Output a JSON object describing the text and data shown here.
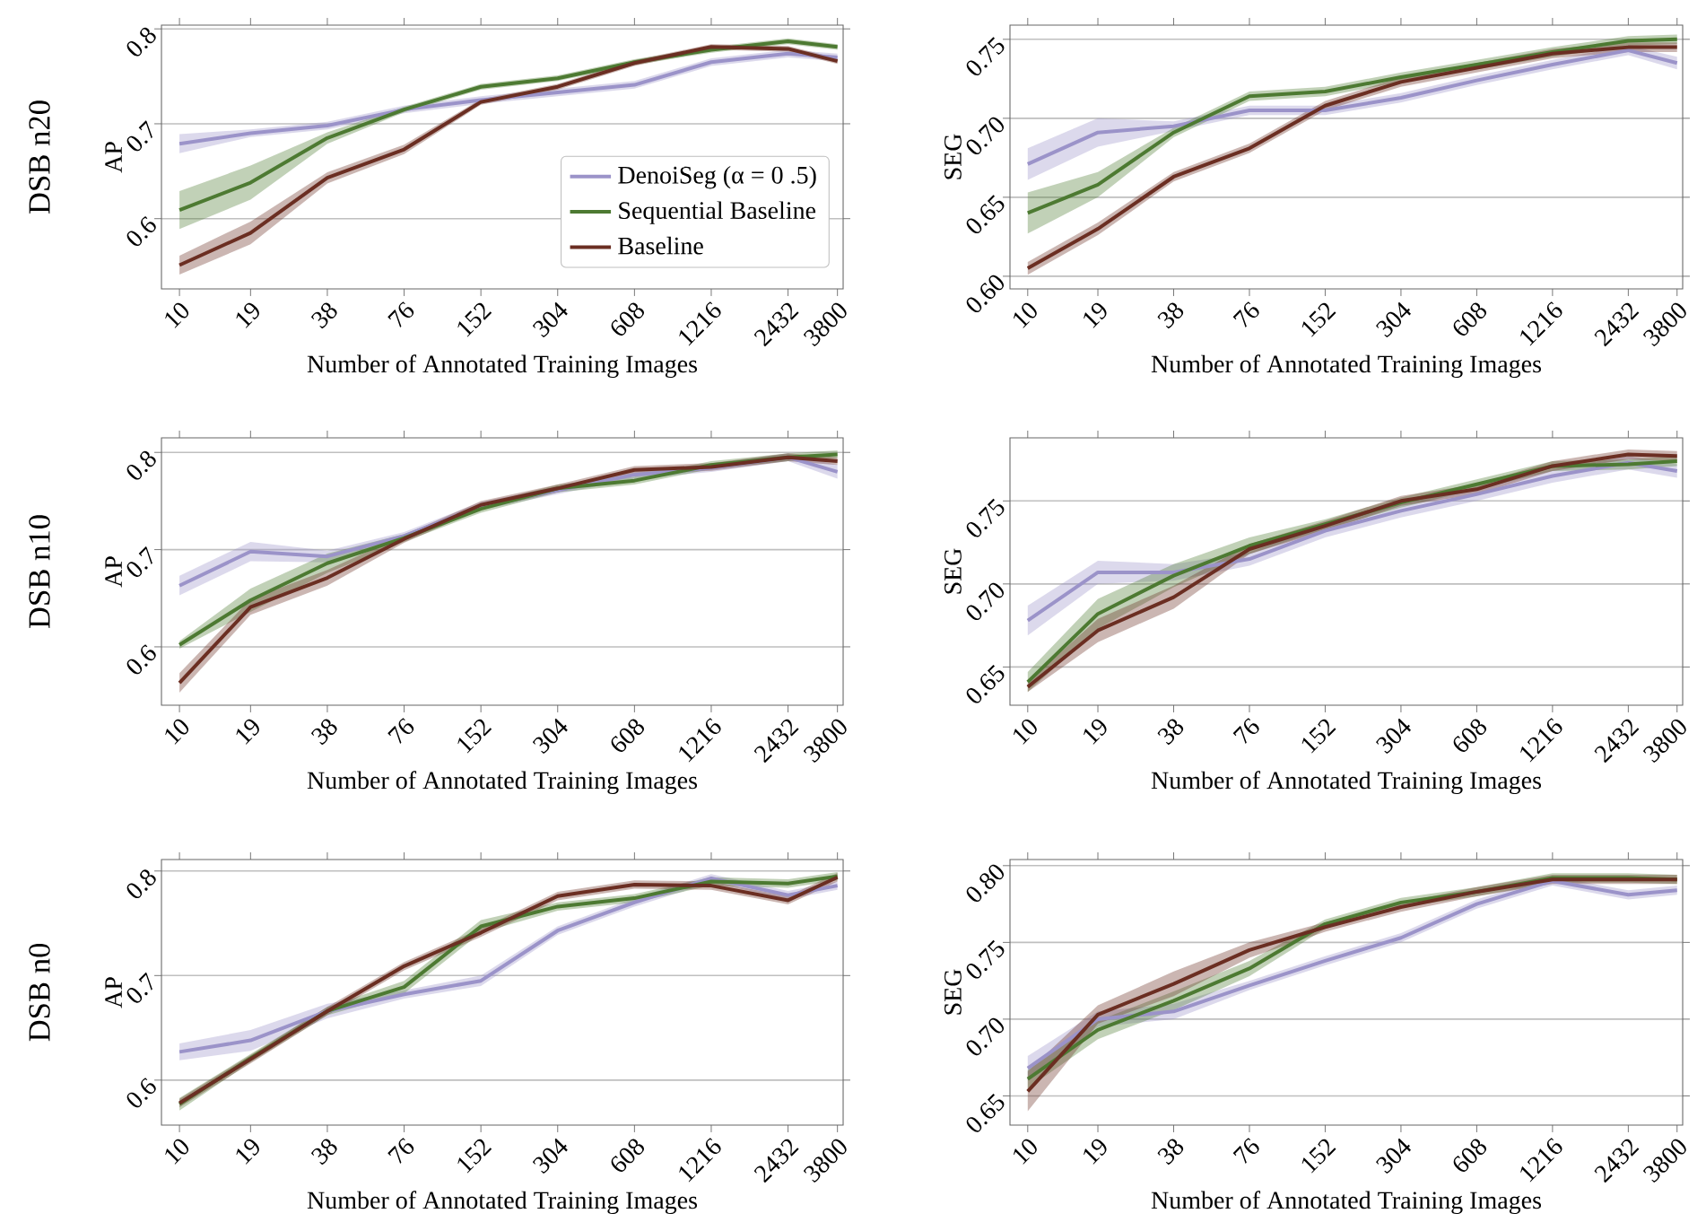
{
  "chart_data": [
    {
      "type": "line",
      "title": "DSB n20",
      "xlabel": "Number of Annotated Training Images",
      "ylabel": "AP",
      "log": "x",
      "grid": "y",
      "legend": "bottom right",
      "x": [
        10,
        19,
        38,
        76,
        152,
        304,
        608,
        1216,
        2432,
        3800
      ],
      "xlim": [
        8.5,
        4000
      ],
      "xticks": [
        10,
        19,
        38,
        76,
        152,
        304,
        608,
        1216,
        2432,
        3800
      ],
      "ylim": [
        0.526,
        0.804
      ],
      "yticks": [
        0.6,
        0.7,
        0.8
      ],
      "series": [
        {
          "name": "DenoiSeg (α = 0 .5)",
          "color": "#9b93c9",
          "values": [
            0.679,
            0.69,
            0.698,
            0.715,
            0.725,
            0.733,
            0.741,
            0.765,
            0.774,
            0.77
          ],
          "lower": [
            0.669,
            0.686,
            0.694,
            0.711,
            0.721,
            0.729,
            0.737,
            0.761,
            0.77,
            0.766
          ],
          "upper": [
            0.689,
            0.694,
            0.702,
            0.719,
            0.729,
            0.737,
            0.745,
            0.769,
            0.778,
            0.774
          ]
        },
        {
          "name": "Sequential Baseline",
          "color": "#4d7a32",
          "values": [
            0.609,
            0.638,
            0.685,
            0.715,
            0.739,
            0.748,
            0.765,
            0.778,
            0.787,
            0.781
          ],
          "lower": [
            0.589,
            0.62,
            0.679,
            0.712,
            0.736,
            0.745,
            0.762,
            0.775,
            0.784,
            0.778
          ],
          "upper": [
            0.629,
            0.656,
            0.691,
            0.718,
            0.742,
            0.751,
            0.768,
            0.781,
            0.79,
            0.784
          ]
        },
        {
          "name": "Baseline",
          "color": "#6b2e22",
          "values": [
            0.551,
            0.585,
            0.643,
            0.673,
            0.723,
            0.739,
            0.764,
            0.781,
            0.779,
            0.766
          ],
          "lower": [
            0.541,
            0.573,
            0.637,
            0.668,
            0.72,
            0.736,
            0.761,
            0.778,
            0.776,
            0.763
          ],
          "upper": [
            0.561,
            0.597,
            0.649,
            0.678,
            0.726,
            0.742,
            0.767,
            0.784,
            0.782,
            0.769
          ]
        }
      ]
    },
    {
      "type": "line",
      "xlabel": "Number of Annotated Training Images",
      "ylabel": "SEG",
      "log": "x",
      "grid": "y",
      "x": [
        10,
        19,
        38,
        76,
        152,
        304,
        608,
        1216,
        2432,
        3800
      ],
      "xlim": [
        8.5,
        4000
      ],
      "xticks": [
        10,
        19,
        38,
        76,
        152,
        304,
        608,
        1216,
        2432,
        3800
      ],
      "ylim": [
        0.592,
        0.759
      ],
      "yticks": [
        {
          "value": 0.6,
          "label": "0.60"
        },
        {
          "value": 0.65,
          "label": "0.65"
        },
        {
          "value": 0.7,
          "label": "0.70"
        },
        {
          "value": 0.75,
          "label": "0.75"
        }
      ],
      "series": [
        {
          "color": "#9b93c9",
          "values": [
            0.671,
            0.691,
            0.695,
            0.705,
            0.705,
            0.713,
            0.724,
            0.734,
            0.743,
            0.735
          ],
          "lower": [
            0.661,
            0.682,
            0.692,
            0.702,
            0.702,
            0.71,
            0.721,
            0.731,
            0.74,
            0.731
          ],
          "upper": [
            0.681,
            0.7,
            0.698,
            0.708,
            0.708,
            0.716,
            0.727,
            0.737,
            0.746,
            0.739
          ]
        },
        {
          "color": "#4d7a32",
          "values": [
            0.64,
            0.658,
            0.691,
            0.714,
            0.717,
            0.726,
            0.734,
            0.742,
            0.749,
            0.75
          ],
          "lower": [
            0.627,
            0.65,
            0.688,
            0.711,
            0.714,
            0.723,
            0.731,
            0.739,
            0.746,
            0.747
          ],
          "upper": [
            0.653,
            0.666,
            0.694,
            0.717,
            0.72,
            0.729,
            0.737,
            0.745,
            0.752,
            0.753
          ]
        },
        {
          "color": "#6b2e22",
          "values": [
            0.605,
            0.63,
            0.663,
            0.681,
            0.708,
            0.723,
            0.732,
            0.741,
            0.745,
            0.745
          ],
          "lower": [
            0.601,
            0.626,
            0.66,
            0.678,
            0.705,
            0.72,
            0.729,
            0.738,
            0.742,
            0.742
          ],
          "upper": [
            0.609,
            0.634,
            0.666,
            0.684,
            0.711,
            0.726,
            0.735,
            0.744,
            0.748,
            0.748
          ]
        }
      ]
    },
    {
      "type": "line",
      "title": "DSB n10",
      "xlabel": "Number of Annotated Training Images",
      "ylabel": "AP",
      "log": "x",
      "grid": "y",
      "x": [
        10,
        19,
        38,
        76,
        152,
        304,
        608,
        1216,
        2432,
        3800
      ],
      "xlim": [
        8.5,
        4000
      ],
      "xticks": [
        10,
        19,
        38,
        76,
        152,
        304,
        608,
        1216,
        2432,
        3800
      ],
      "ylim": [
        0.54,
        0.815
      ],
      "yticks": [
        0.6,
        0.7,
        0.8
      ],
      "series": [
        {
          "color": "#9b93c9",
          "values": [
            0.663,
            0.698,
            0.693,
            0.714,
            0.745,
            0.761,
            0.777,
            0.784,
            0.795,
            0.78
          ],
          "lower": [
            0.653,
            0.688,
            0.687,
            0.71,
            0.741,
            0.757,
            0.773,
            0.78,
            0.791,
            0.773
          ],
          "upper": [
            0.673,
            0.708,
            0.699,
            0.718,
            0.749,
            0.765,
            0.781,
            0.788,
            0.799,
            0.787
          ]
        },
        {
          "color": "#4d7a32",
          "values": [
            0.602,
            0.648,
            0.686,
            0.712,
            0.742,
            0.763,
            0.771,
            0.787,
            0.795,
            0.798
          ],
          "lower": [
            0.598,
            0.636,
            0.676,
            0.708,
            0.738,
            0.759,
            0.767,
            0.783,
            0.791,
            0.794
          ],
          "upper": [
            0.606,
            0.66,
            0.696,
            0.716,
            0.746,
            0.767,
            0.775,
            0.791,
            0.799,
            0.802
          ]
        },
        {
          "color": "#6b2e22",
          "values": [
            0.563,
            0.641,
            0.671,
            0.711,
            0.746,
            0.763,
            0.782,
            0.785,
            0.795,
            0.791
          ],
          "lower": [
            0.553,
            0.633,
            0.663,
            0.707,
            0.742,
            0.759,
            0.778,
            0.781,
            0.791,
            0.787
          ],
          "upper": [
            0.573,
            0.649,
            0.679,
            0.715,
            0.75,
            0.767,
            0.786,
            0.789,
            0.799,
            0.795
          ]
        }
      ]
    },
    {
      "type": "line",
      "xlabel": "Number of Annotated Training Images",
      "ylabel": "SEG",
      "log": "x",
      "grid": "y",
      "x": [
        10,
        19,
        38,
        76,
        152,
        304,
        608,
        1216,
        2432,
        3800
      ],
      "xlim": [
        8.5,
        4000
      ],
      "xticks": [
        10,
        19,
        38,
        76,
        152,
        304,
        608,
        1216,
        2432,
        3800
      ],
      "ylim": [
        0.627,
        0.788
      ],
      "yticks": [
        {
          "value": 0.65,
          "label": "0.65"
        },
        {
          "value": 0.7,
          "label": "0.70"
        },
        {
          "value": 0.75,
          "label": "0.75"
        }
      ],
      "series": [
        {
          "color": "#9b93c9",
          "values": [
            0.678,
            0.707,
            0.707,
            0.715,
            0.732,
            0.744,
            0.754,
            0.765,
            0.773,
            0.768
          ],
          "lower": [
            0.669,
            0.7,
            0.702,
            0.711,
            0.728,
            0.74,
            0.75,
            0.761,
            0.769,
            0.764
          ],
          "upper": [
            0.687,
            0.714,
            0.712,
            0.719,
            0.736,
            0.748,
            0.758,
            0.769,
            0.777,
            0.772
          ]
        },
        {
          "color": "#4d7a32",
          "values": [
            0.641,
            0.682,
            0.705,
            0.723,
            0.736,
            0.749,
            0.76,
            0.771,
            0.772,
            0.774
          ],
          "lower": [
            0.635,
            0.673,
            0.698,
            0.718,
            0.733,
            0.746,
            0.757,
            0.768,
            0.769,
            0.771
          ],
          "upper": [
            0.647,
            0.691,
            0.712,
            0.728,
            0.739,
            0.752,
            0.763,
            0.774,
            0.775,
            0.777
          ]
        },
        {
          "color": "#6b2e22",
          "values": [
            0.638,
            0.672,
            0.692,
            0.721,
            0.735,
            0.75,
            0.757,
            0.771,
            0.778,
            0.777
          ],
          "lower": [
            0.635,
            0.665,
            0.685,
            0.718,
            0.732,
            0.747,
            0.754,
            0.768,
            0.775,
            0.774
          ],
          "upper": [
            0.641,
            0.679,
            0.699,
            0.724,
            0.738,
            0.753,
            0.76,
            0.774,
            0.781,
            0.78
          ]
        }
      ]
    },
    {
      "type": "line",
      "title": "DSB n0",
      "xlabel": "Number of Annotated Training Images",
      "ylabel": "AP",
      "log": "x",
      "grid": "y",
      "x": [
        10,
        19,
        38,
        76,
        152,
        304,
        608,
        1216,
        2432,
        3800
      ],
      "xlim": [
        8.5,
        4000
      ],
      "xticks": [
        10,
        19,
        38,
        76,
        152,
        304,
        608,
        1216,
        2432,
        3800
      ],
      "ylim": [
        0.557,
        0.811
      ],
      "yticks": [
        0.6,
        0.7,
        0.8
      ],
      "series": [
        {
          "color": "#9b93c9",
          "values": [
            0.627,
            0.638,
            0.666,
            0.682,
            0.695,
            0.743,
            0.77,
            0.793,
            0.777,
            0.786
          ],
          "lower": [
            0.619,
            0.628,
            0.659,
            0.678,
            0.69,
            0.739,
            0.766,
            0.789,
            0.773,
            0.782
          ],
          "upper": [
            0.635,
            0.648,
            0.673,
            0.686,
            0.7,
            0.747,
            0.774,
            0.797,
            0.781,
            0.79
          ]
        },
        {
          "color": "#4d7a32",
          "values": [
            0.577,
            0.621,
            0.666,
            0.689,
            0.747,
            0.766,
            0.774,
            0.79,
            0.788,
            0.795
          ],
          "lower": [
            0.571,
            0.617,
            0.662,
            0.683,
            0.741,
            0.762,
            0.77,
            0.786,
            0.784,
            0.791
          ],
          "upper": [
            0.583,
            0.625,
            0.67,
            0.695,
            0.753,
            0.77,
            0.778,
            0.794,
            0.792,
            0.799
          ]
        },
        {
          "color": "#6b2e22",
          "values": [
            0.578,
            0.62,
            0.666,
            0.709,
            0.741,
            0.776,
            0.787,
            0.786,
            0.772,
            0.794
          ],
          "lower": [
            0.574,
            0.616,
            0.662,
            0.705,
            0.737,
            0.772,
            0.783,
            0.782,
            0.768,
            0.79
          ],
          "upper": [
            0.582,
            0.624,
            0.67,
            0.713,
            0.745,
            0.78,
            0.791,
            0.79,
            0.776,
            0.798
          ]
        }
      ]
    },
    {
      "type": "line",
      "xlabel": "Number of Annotated Training Images",
      "ylabel": "SEG",
      "log": "x",
      "grid": "y",
      "x": [
        10,
        19,
        38,
        76,
        152,
        304,
        608,
        1216,
        2432,
        3800
      ],
      "xlim": [
        8.5,
        4000
      ],
      "xticks": [
        10,
        19,
        38,
        76,
        152,
        304,
        608,
        1216,
        2432,
        3800
      ],
      "ylim": [
        0.631,
        0.804
      ],
      "yticks": [
        {
          "value": 0.65,
          "label": "0.65"
        },
        {
          "value": 0.7,
          "label": "0.70"
        },
        {
          "value": 0.75,
          "label": "0.75"
        },
        {
          "value": 0.8,
          "label": "0.80"
        }
      ],
      "series": [
        {
          "color": "#9b93c9",
          "values": [
            0.668,
            0.7,
            0.705,
            0.722,
            0.738,
            0.753,
            0.775,
            0.79,
            0.781,
            0.784
          ],
          "lower": [
            0.66,
            0.695,
            0.7,
            0.719,
            0.735,
            0.75,
            0.772,
            0.787,
            0.778,
            0.781
          ],
          "upper": [
            0.676,
            0.705,
            0.71,
            0.725,
            0.741,
            0.756,
            0.778,
            0.793,
            0.784,
            0.787
          ]
        },
        {
          "color": "#4d7a32",
          "values": [
            0.661,
            0.693,
            0.712,
            0.733,
            0.762,
            0.776,
            0.783,
            0.792,
            0.792,
            0.791
          ],
          "lower": [
            0.655,
            0.687,
            0.706,
            0.728,
            0.759,
            0.773,
            0.78,
            0.789,
            0.789,
            0.788
          ],
          "upper": [
            0.667,
            0.699,
            0.718,
            0.738,
            0.765,
            0.779,
            0.786,
            0.795,
            0.795,
            0.794
          ]
        },
        {
          "color": "#6b2e22",
          "values": [
            0.653,
            0.703,
            0.723,
            0.745,
            0.76,
            0.773,
            0.783,
            0.791,
            0.791,
            0.791
          ],
          "lower": [
            0.64,
            0.697,
            0.715,
            0.74,
            0.757,
            0.77,
            0.78,
            0.788,
            0.788,
            0.788
          ],
          "upper": [
            0.666,
            0.709,
            0.731,
            0.75,
            0.763,
            0.776,
            0.786,
            0.794,
            0.794,
            0.794
          ]
        }
      ]
    }
  ]
}
